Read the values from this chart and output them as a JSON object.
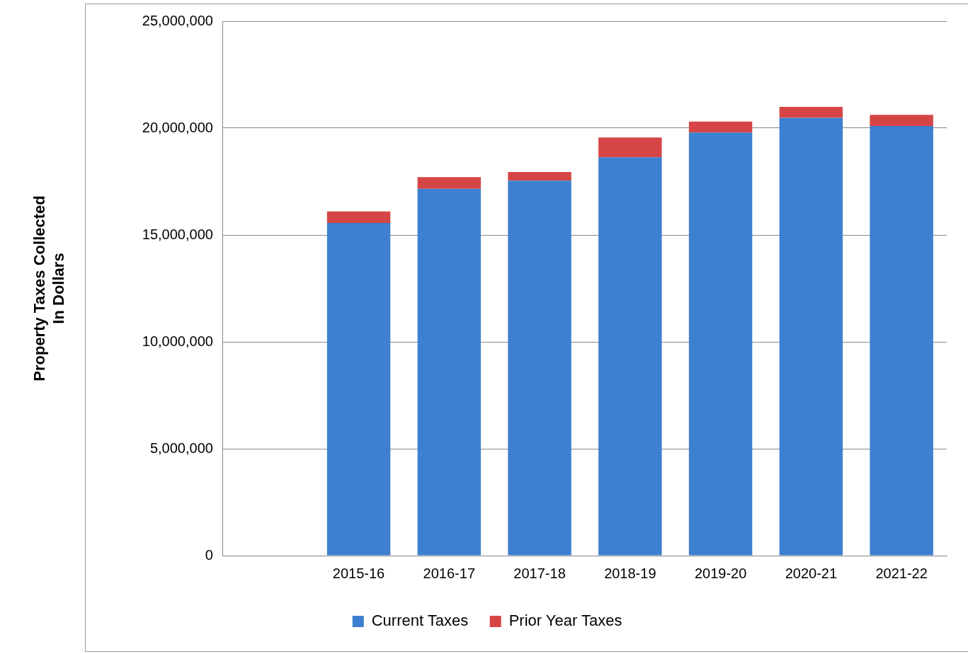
{
  "chart_data": {
    "type": "bar",
    "ylabel": "Property Taxes Collected\nIn Dollars",
    "categories": [
      null,
      "2015-16",
      "2016-17",
      "2017-18",
      "2018-19",
      "2019-20",
      "2020-21",
      "2021-22"
    ],
    "stacked": true,
    "series": [
      {
        "name": "Current Taxes",
        "color": "#3d7fd0",
        "values": [
          null,
          15560000.0,
          17160000.0,
          17540000.0,
          18630000.0,
          19790000.0,
          20480000.0,
          20100000.0
        ]
      },
      {
        "name": "Prior Year Taxes",
        "color": "#d64545",
        "values": [
          null,
          540000.0,
          550000.0,
          410000.0,
          930000.0,
          520000.0,
          510000.0,
          520000.0
        ]
      }
    ],
    "ylim": [
      0,
      25000000
    ],
    "yticks": [
      0,
      {
        "value": 5000000,
        "label": "5,000,000"
      },
      {
        "value": 10000000,
        "label": "10,000,000"
      },
      {
        "value": 15000000,
        "label": "15,000,000"
      },
      {
        "value": 20000000,
        "label": "20,000,000"
      },
      {
        "value": 25000000,
        "label": "25,000,000"
      }
    ],
    "grid": "y",
    "legend": "bottom"
  }
}
